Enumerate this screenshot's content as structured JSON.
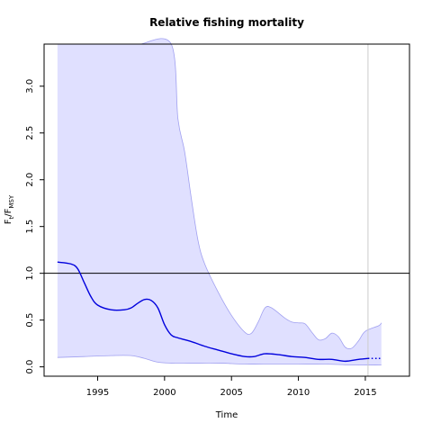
{
  "chart_data": {
    "type": "line",
    "title": "Relative fishing mortality",
    "xlabel": "Time",
    "ylabel": {
      "main": "F",
      "sub1": "t",
      "sep": "/F",
      "sub2": "MSY"
    },
    "xlim": [
      1991.0,
      2018.3
    ],
    "ylim": [
      -0.1,
      3.45
    ],
    "x_ticks": [
      1995,
      2000,
      2005,
      2010,
      2015
    ],
    "x_tick_labels": [
      "1995",
      "2000",
      "2005",
      "2010",
      "2015"
    ],
    "y_ticks": [
      0.0,
      0.5,
      1.0,
      1.5,
      2.0,
      2.5,
      3.0
    ],
    "y_tick_labels": [
      "0.0",
      "0.5",
      "1.0",
      "1.5",
      "2.0",
      "2.5",
      "3.0"
    ],
    "reference_line_y": 1.0,
    "reference_line_x": 2015.2,
    "grid": false,
    "colors": {
      "estimate": "#0000dd",
      "band_fill": "#e0e0ff",
      "band_edge": "#a0a0f0",
      "reference": "#000000",
      "vertical_marker": "#cccccc"
    },
    "series": [
      {
        "role": "estimate",
        "style": "solid",
        "x": [
          1992.0,
          1993.0,
          1993.5,
          1994.0,
          1994.5,
          1995.0,
          1996.0,
          1997.0,
          1997.5,
          1998.0,
          1998.5,
          1999.0,
          1999.5,
          2000.0,
          2000.5,
          2001.0,
          2002.0,
          2003.0,
          2004.0,
          2005.0,
          2006.0,
          2006.7,
          2007.5,
          2008.5,
          2009.5,
          2010.5,
          2011.5,
          2012.5,
          2013.5,
          2014.5,
          2015.2
        ],
        "y": [
          1.12,
          1.1,
          1.05,
          0.9,
          0.75,
          0.66,
          0.61,
          0.61,
          0.63,
          0.68,
          0.72,
          0.71,
          0.63,
          0.45,
          0.34,
          0.31,
          0.27,
          0.22,
          0.18,
          0.14,
          0.11,
          0.11,
          0.14,
          0.13,
          0.11,
          0.1,
          0.08,
          0.08,
          0.06,
          0.08,
          0.09
        ]
      },
      {
        "role": "prediction",
        "style": "dotted",
        "x": [
          2015.2,
          2016.2
        ],
        "y": [
          0.09,
          0.09
        ]
      },
      {
        "role": "upper_bound",
        "x": [
          1992.0,
          1993.0,
          1993.8,
          1994.0,
          1994.3,
          1995.0,
          1995.5,
          1996.0,
          1996.5,
          1997.0,
          1997.5,
          1998.0,
          1998.2,
          2000.5,
          2001.0,
          2001.5,
          2002.0,
          2002.5,
          2003.0,
          2004.0,
          2005.0,
          2006.0,
          2006.5,
          2007.0,
          2007.5,
          2008.0,
          2009.0,
          2009.5,
          2010.0,
          2010.5,
          2011.0,
          2011.5,
          2012.0,
          2012.5,
          2013.0,
          2013.5,
          2014.0,
          2014.5,
          2015.0,
          2016.0,
          2016.2
        ],
        "y": [
          3.45,
          3.45,
          3.45,
          3.45,
          3.45,
          3.45,
          3.45,
          3.45,
          3.45,
          3.45,
          3.45,
          3.45,
          3.45,
          3.45,
          2.65,
          2.3,
          1.8,
          1.35,
          1.1,
          0.8,
          0.55,
          0.37,
          0.36,
          0.48,
          0.63,
          0.63,
          0.52,
          0.48,
          0.47,
          0.46,
          0.37,
          0.29,
          0.3,
          0.36,
          0.32,
          0.21,
          0.2,
          0.28,
          0.38,
          0.44,
          0.47
        ]
      },
      {
        "role": "lower_bound",
        "x": [
          1992.0,
          1994.0,
          1996.0,
          1997.5,
          1998.5,
          1999.5,
          2000.5,
          2002.0,
          2004.0,
          2006.0,
          2008.0,
          2010.0,
          2012.0,
          2014.0,
          2016.2
        ],
        "y": [
          0.1,
          0.11,
          0.12,
          0.12,
          0.09,
          0.05,
          0.04,
          0.04,
          0.04,
          0.03,
          0.03,
          0.03,
          0.03,
          0.02,
          0.02
        ]
      }
    ]
  }
}
